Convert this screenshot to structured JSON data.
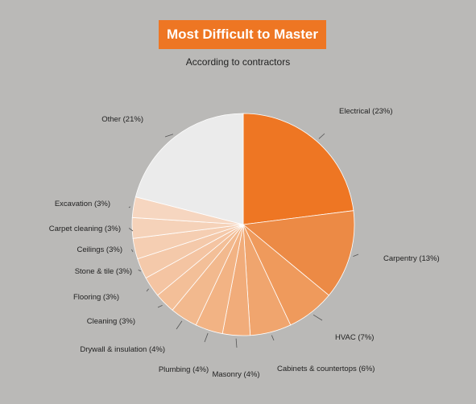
{
  "chart_data": {
    "type": "pie",
    "title": "Most Difficult to Master",
    "subtitle": "According to contractors",
    "start_angle_deg": 0,
    "direction": "clockwise",
    "slices": [
      {
        "label": "Electrical (23%)",
        "value": 23,
        "color": "#ee7623"
      },
      {
        "label": "Carpentry (13%)",
        "value": 13,
        "color": "#ec8a45"
      },
      {
        "label": "HVAC (7%)",
        "value": 7,
        "color": "#ef9a5c"
      },
      {
        "label": "Cabinets & countertops (6%)",
        "value": 6,
        "color": "#f0a56e"
      },
      {
        "label": "Masonry (4%)",
        "value": 4,
        "color": "#f1ac7a"
      },
      {
        "label": "Plumbing (4%)",
        "value": 4,
        "color": "#f2b384"
      },
      {
        "label": "Drywall & insulation (4%)",
        "value": 4,
        "color": "#f2b98e"
      },
      {
        "label": "Cleaning (3%)",
        "value": 3,
        "color": "#f3bf98"
      },
      {
        "label": "Flooring (3%)",
        "value": 3,
        "color": "#f4c4a2"
      },
      {
        "label": "Stone & tile (3%)",
        "value": 3,
        "color": "#f4c9aa"
      },
      {
        "label": "Ceilings (3%)",
        "value": 3,
        "color": "#f5ceb2"
      },
      {
        "label": "Carpet cleaning (3%)",
        "value": 3,
        "color": "#f5d2b9"
      },
      {
        "label": "Excavation (3%)",
        "value": 3,
        "color": "#f6d6c0"
      },
      {
        "label": "Other (21%)",
        "value": 21,
        "color": "#ebebeb"
      }
    ]
  }
}
